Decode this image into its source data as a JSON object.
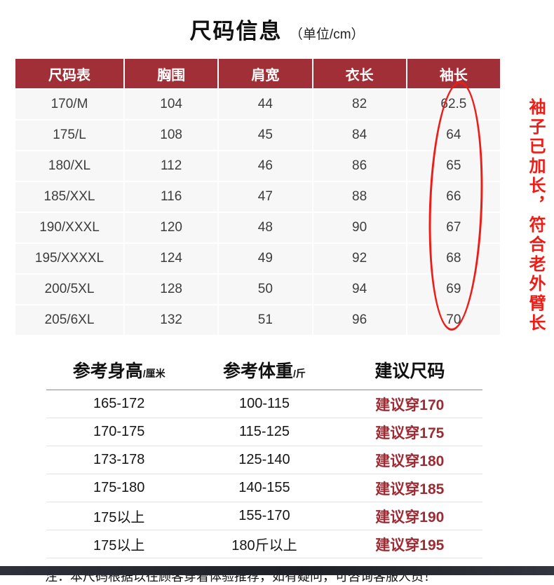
{
  "title": {
    "main": "尺码信息",
    "suffix": "（单位/cm）"
  },
  "size_table": {
    "headers": [
      "尺码表",
      "胸围",
      "肩宽",
      "衣长",
      "袖长"
    ],
    "rows": [
      [
        "170/M",
        "104",
        "44",
        "82",
        "62.5"
      ],
      [
        "175/L",
        "108",
        "45",
        "84",
        "64"
      ],
      [
        "180/XL",
        "112",
        "46",
        "86",
        "65"
      ],
      [
        "185/XXL",
        "116",
        "47",
        "88",
        "66"
      ],
      [
        "190/XXXL",
        "120",
        "48",
        "90",
        "67"
      ],
      [
        "195/XXXXL",
        "124",
        "49",
        "92",
        "68"
      ],
      [
        "200/5XL",
        "128",
        "50",
        "94",
        "69"
      ],
      [
        "205/6XL",
        "132",
        "51",
        "96",
        "70"
      ]
    ]
  },
  "sleeve_note": "袖子已加长，符合老外臂长",
  "reference_table": {
    "headers": [
      {
        "label": "参考身高",
        "unit": "/厘米"
      },
      {
        "label": "参考体重",
        "unit": "/斤"
      },
      {
        "label": "建议尺码",
        "unit": ""
      }
    ],
    "rows": [
      [
        "165-172",
        "100-115",
        "建议穿170"
      ],
      [
        "170-175",
        "115-125",
        "建议穿175"
      ],
      [
        "173-178",
        "125-140",
        "建议穿180"
      ],
      [
        "175-180",
        "140-155",
        "建议穿185"
      ],
      [
        "175以上",
        "155-170",
        "建议穿190"
      ],
      [
        "175以上",
        "180斤以上",
        "建议穿195"
      ]
    ]
  },
  "footer_note": "注：本尺码根据以往顾客穿着体验推荐，如有疑问，可咨询客服人员！",
  "colors": {
    "table_header_bg": "#A12F38",
    "row_bg": "#F7F7F7",
    "suggest_text": "#9E2B33",
    "annotation_red": "#EE1C16"
  }
}
